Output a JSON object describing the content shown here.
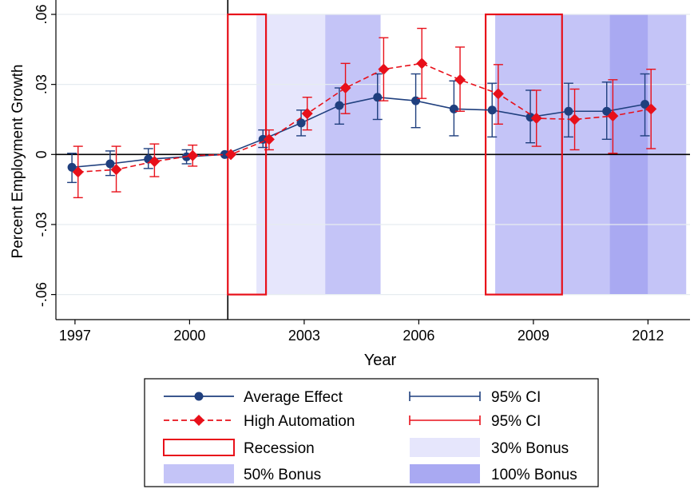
{
  "chart_data": {
    "type": "line",
    "xlabel": "Year",
    "ylabel": "Percent Employment Growth",
    "xlim": [
      1996.5,
      2013.1
    ],
    "ylim": [
      -0.068,
      0.06
    ],
    "x_ticks": [
      1997,
      2000,
      2003,
      2006,
      2009,
      2012
    ],
    "x_tick_labels": [
      "1997",
      "2000",
      "2003",
      "2006",
      "2009",
      "2012"
    ],
    "y_ticks": [
      -0.06,
      -0.03,
      0,
      0.03,
      0.06
    ],
    "y_tick_labels": [
      "-.06",
      "-.03",
      "0",
      ".03",
      ".06"
    ],
    "grid": "horizontal",
    "vertical_reference_line": 2001,
    "series": [
      {
        "name": "Average Effect",
        "color": "#1f3f7e",
        "marker": "circle",
        "line": "solid",
        "x": [
          1997,
          1998,
          1999,
          2000,
          2001,
          2002,
          2003,
          2004,
          2005,
          2006,
          2007,
          2008,
          2009,
          2010,
          2011,
          2012
        ],
        "values": [
          -0.0055,
          -0.004,
          -0.002,
          -0.001,
          0.0,
          0.0065,
          0.0135,
          0.021,
          0.0245,
          0.023,
          0.0195,
          0.019,
          0.016,
          0.0185,
          0.0185,
          0.0215
        ],
        "ci_low": [
          -0.012,
          -0.009,
          -0.006,
          -0.004,
          0.0,
          0.003,
          0.008,
          0.013,
          0.015,
          0.0115,
          0.008,
          0.0075,
          0.005,
          0.0075,
          0.0065,
          0.008
        ],
        "ci_high": [
          0.0005,
          0.0015,
          0.0025,
          0.002,
          0.0,
          0.0105,
          0.019,
          0.0285,
          0.0345,
          0.0345,
          0.0315,
          0.0305,
          0.0275,
          0.0305,
          0.031,
          0.0345
        ]
      },
      {
        "name": "High Automation",
        "color": "#e8101a",
        "marker": "diamond",
        "line": "dashed",
        "x": [
          1997,
          1998,
          1999,
          2000,
          2001,
          2002,
          2003,
          2004,
          2005,
          2006,
          2007,
          2008,
          2009,
          2010,
          2011,
          2012
        ],
        "values": [
          -0.0075,
          -0.0065,
          -0.003,
          -0.0005,
          0.0,
          0.0065,
          0.0175,
          0.0285,
          0.0365,
          0.039,
          0.032,
          0.026,
          0.0155,
          0.015,
          0.0165,
          0.0195
        ],
        "ci_low": [
          -0.0185,
          -0.016,
          -0.0095,
          -0.005,
          0.0,
          0.002,
          0.0105,
          0.0175,
          0.023,
          0.024,
          0.0185,
          0.013,
          0.0035,
          0.002,
          0.0005,
          0.0025
        ],
        "ci_high": [
          0.0035,
          0.0035,
          0.0045,
          0.004,
          0.0,
          0.0105,
          0.0245,
          0.039,
          0.05,
          0.054,
          0.046,
          0.0385,
          0.0275,
          0.028,
          0.032,
          0.0365
        ]
      }
    ],
    "shaded_regions": [
      {
        "label": "30% Bonus",
        "x0": 2001.75,
        "x1": 2003.55,
        "color": "#e6e6fc"
      },
      {
        "label": "50% Bonus",
        "x0": 2003.55,
        "x1": 2005.0,
        "color": "#c4c4f7"
      },
      {
        "label": "50% Bonus",
        "x0": 2008.0,
        "x1": 2011.0,
        "color": "#c4c4f7"
      },
      {
        "label": "100% Bonus",
        "x0": 2011.0,
        "x1": 2012.0,
        "color": "#a9a9f2"
      },
      {
        "label": "50% Bonus",
        "x0": 2012.0,
        "x1": 2013.0,
        "color": "#c4c4f7"
      }
    ],
    "recessions": [
      {
        "label": "Recession",
        "x0": 2001.0,
        "x1": 2002.0
      },
      {
        "label": "Recession",
        "x0": 2007.75,
        "x1": 2009.75
      }
    ],
    "legend": {
      "placement": "bottom",
      "entries": [
        {
          "label": "Average Effect",
          "kind": "line-circle",
          "color": "#1f3f7e"
        },
        {
          "label": "95% CI",
          "kind": "ci",
          "color": "#1f3f7e"
        },
        {
          "label": "High Automation",
          "kind": "line-diamond",
          "color": "#e8101a"
        },
        {
          "label": "95% CI",
          "kind": "ci",
          "color": "#e8101a"
        },
        {
          "label": "Recession",
          "kind": "box",
          "color": "#e8101a"
        },
        {
          "label": "30% Bonus",
          "kind": "fill",
          "color": "#e6e6fc"
        },
        {
          "label": "50% Bonus",
          "kind": "fill",
          "color": "#c4c4f7"
        },
        {
          "label": "100% Bonus",
          "kind": "fill",
          "color": "#a9a9f2"
        }
      ]
    }
  }
}
